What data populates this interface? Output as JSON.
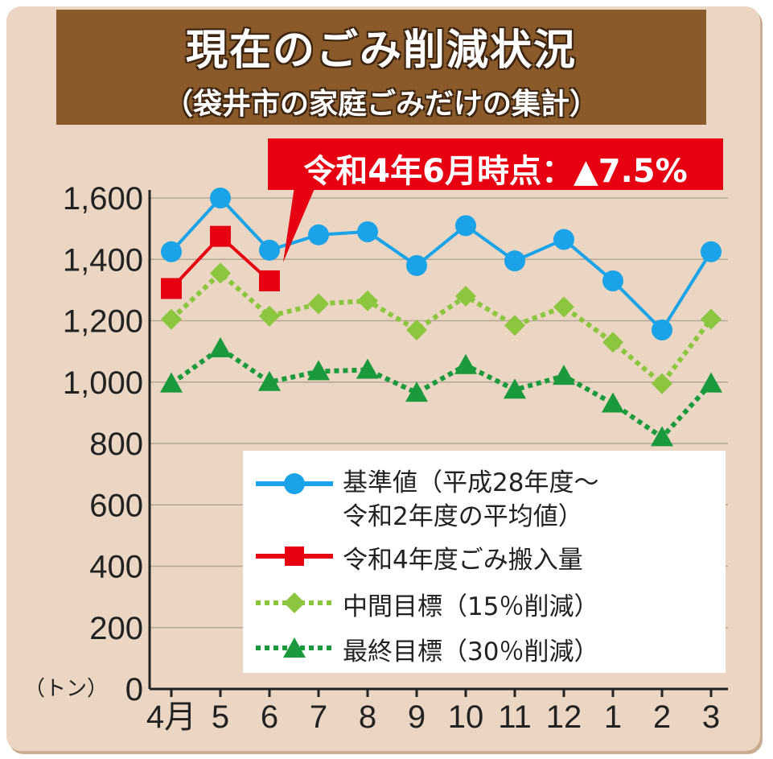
{
  "title": "現在のごみ削減状況",
  "subtitle": "（袋井市の家庭ごみだけの集計）",
  "callout": "令和4年6月時点：▲7.5%",
  "y_unit": "（トン）",
  "colors": {
    "baseline": "#1aa3e8",
    "actual": "#e60012",
    "interim": "#8cc63f",
    "final": "#1a9a3c",
    "title_bg": "#8a5a2b",
    "panel_bg": "#ead6c2"
  },
  "legend": [
    {
      "key": "baseline",
      "line1": "基準値（平成28年度～",
      "line2": "令和2年度の平均値）"
    },
    {
      "key": "actual",
      "line1": "令和4年度ごみ搬入量"
    },
    {
      "key": "interim",
      "line1": "中間目標（15％削減）"
    },
    {
      "key": "final",
      "line1": "最終目標（30％削減）"
    }
  ],
  "chart_data": {
    "type": "line",
    "categories": [
      "4月",
      "5",
      "6",
      "7",
      "8",
      "9",
      "10",
      "11",
      "12",
      "1",
      "2",
      "3"
    ],
    "ylim": [
      0,
      1600
    ],
    "yticks": [
      0,
      200,
      400,
      600,
      800,
      1000,
      1200,
      1400,
      1600
    ],
    "ytick_labels": [
      "0",
      "200",
      "400",
      "600",
      "800",
      "1,000",
      "1,200",
      "1,400",
      "1,600"
    ],
    "grid": true,
    "series": [
      {
        "name": "基準値（平成28年度～令和2年度の平均値）",
        "key": "baseline",
        "marker": "circle",
        "dash": "solid",
        "values": [
          1425,
          1600,
          1430,
          1480,
          1490,
          1380,
          1510,
          1395,
          1465,
          1330,
          1170,
          1425
        ]
      },
      {
        "name": "令和4年度ごみ搬入量",
        "key": "actual",
        "marker": "square",
        "dash": "solid",
        "values": [
          1305,
          1475,
          1330,
          null,
          null,
          null,
          null,
          null,
          null,
          null,
          null,
          null
        ]
      },
      {
        "name": "中間目標（15％削減）",
        "key": "interim",
        "marker": "diamond",
        "dash": "dotted",
        "values": [
          1205,
          1355,
          1215,
          1255,
          1265,
          1170,
          1280,
          1185,
          1245,
          1130,
          995,
          1205
        ]
      },
      {
        "name": "最終目標（30％削減）",
        "key": "final",
        "marker": "triangle",
        "dash": "dotted",
        "values": [
          995,
          1110,
          1000,
          1035,
          1040,
          965,
          1055,
          975,
          1020,
          930,
          820,
          995
        ]
      }
    ]
  }
}
